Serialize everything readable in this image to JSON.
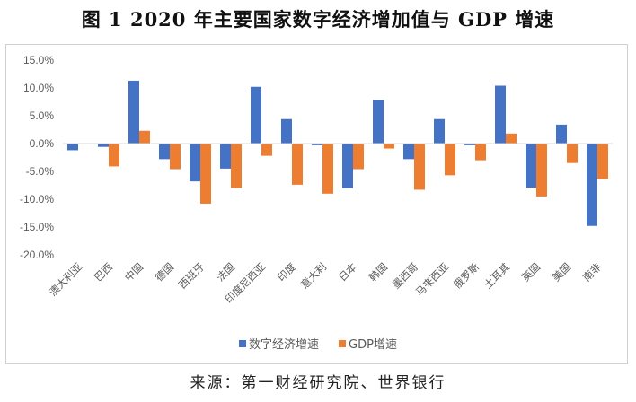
{
  "title": "图 1 2020 年主要国家数字经济增加值与 GDP 增速",
  "source": "来源：第一财经研究院、世界银行",
  "colors": {
    "digital": "#4472C4",
    "gdp": "#ED7D31",
    "axis_line": "#D9D9D9",
    "text": "#595959"
  },
  "chart_data": {
    "type": "bar",
    "title": "图 1 2020 年主要国家数字经济增加值与 GDP 增速",
    "xlabel": "",
    "ylabel": "",
    "ylim": [
      -20,
      15
    ],
    "yticks": [
      15,
      10,
      5,
      0,
      -5,
      -10,
      -15,
      -20
    ],
    "ytick_labels": [
      "15.0%",
      "10.0%",
      "5.0%",
      "0.0%",
      "-5.0%",
      "-10.0%",
      "-15.0%",
      "-20.0%"
    ],
    "grid": false,
    "legend_position": "bottom",
    "categories": [
      "澳大利亚",
      "巴西",
      "中国",
      "德国",
      "西班牙",
      "法国",
      "印度尼西亚",
      "印度",
      "意大利",
      "日本",
      "韩国",
      "墨西哥",
      "马来西亚",
      "俄罗斯",
      "土耳其",
      "英国",
      "美国",
      "南非"
    ],
    "series": [
      {
        "name": "数字经济增速",
        "color": "#4472C4",
        "values": [
          -1.2,
          -0.6,
          11.3,
          -2.8,
          -6.8,
          -4.5,
          10.2,
          4.4,
          -0.3,
          -8.0,
          7.8,
          -2.8,
          4.4,
          -0.3,
          10.4,
          -7.9,
          3.4,
          -14.8
        ]
      },
      {
        "name": "GDP增速",
        "color": "#ED7D31",
        "values": [
          0.0,
          -4.1,
          2.3,
          -4.6,
          -10.8,
          -8.0,
          -2.2,
          -7.4,
          -9.0,
          -4.6,
          -0.9,
          -8.3,
          -5.7,
          -3.0,
          1.8,
          -9.5,
          -3.5,
          -6.4
        ]
      }
    ]
  }
}
